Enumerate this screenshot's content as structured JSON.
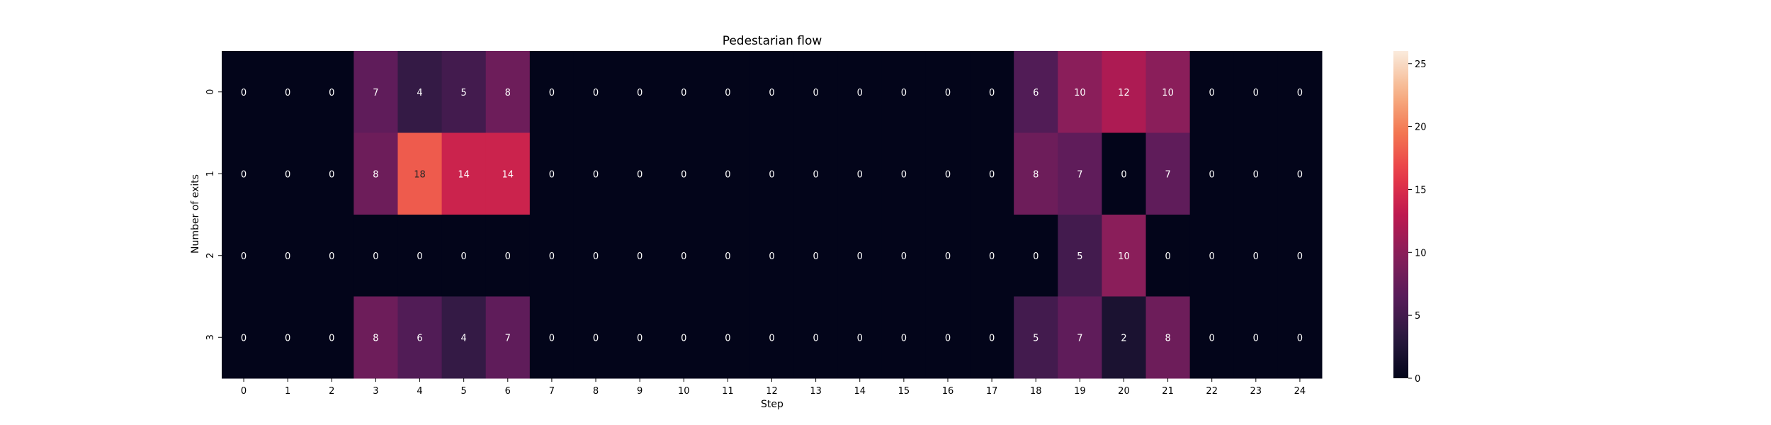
{
  "chart_data": {
    "type": "heatmap",
    "title": "Pedestarian flow",
    "xlabel": "Step",
    "ylabel": "Number of exits",
    "x": [
      "0",
      "1",
      "2",
      "3",
      "4",
      "5",
      "6",
      "7",
      "8",
      "9",
      "10",
      "11",
      "12",
      "13",
      "14",
      "15",
      "16",
      "17",
      "18",
      "19",
      "20",
      "21",
      "22",
      "23",
      "24"
    ],
    "y": [
      "0",
      "1",
      "2",
      "3"
    ],
    "values": [
      [
        0,
        0,
        0,
        7,
        4,
        5,
        8,
        0,
        0,
        0,
        0,
        0,
        0,
        0,
        0,
        0,
        0,
        0,
        6,
        10,
        12,
        10,
        0,
        0,
        0
      ],
      [
        0,
        0,
        0,
        8,
        18,
        14,
        14,
        0,
        0,
        0,
        0,
        0,
        0,
        0,
        0,
        0,
        0,
        0,
        8,
        7,
        0,
        7,
        0,
        0,
        0
      ],
      [
        0,
        0,
        0,
        0,
        0,
        0,
        0,
        0,
        0,
        0,
        0,
        0,
        0,
        0,
        0,
        0,
        0,
        0,
        0,
        5,
        10,
        0,
        0,
        0,
        0
      ],
      [
        0,
        0,
        0,
        8,
        6,
        4,
        7,
        0,
        0,
        0,
        0,
        0,
        0,
        0,
        0,
        0,
        0,
        0,
        5,
        7,
        2,
        8,
        0,
        0,
        0
      ]
    ],
    "colorbar": {
      "min": 0,
      "max": 26,
      "ticks": [
        0,
        5,
        10,
        15,
        20,
        25
      ]
    },
    "colormap": "rocket",
    "annotations": true
  }
}
